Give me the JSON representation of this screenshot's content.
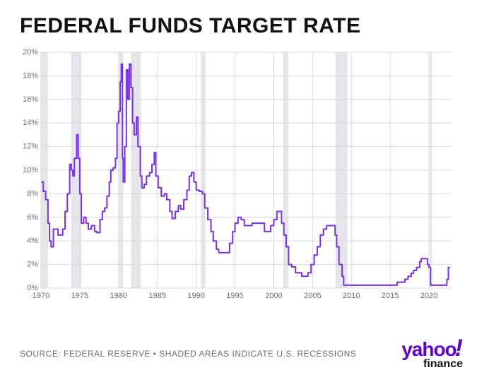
{
  "title": "FEDERAL FUNDS TARGET RATE",
  "source_line": "SOURCE: FEDERAL RESERVE • SHADED AREAS INDICATE U.S. RECESSIONS",
  "logo": {
    "main": "yahoo",
    "bang": "!",
    "sub": "finance"
  },
  "chart": {
    "type": "line-step",
    "background_color": "#ffffff",
    "plot_background": "#ffffff",
    "line_color": "#7a2ff0",
    "line_width": 2,
    "grid_color": "#d9dbe0",
    "axis_color": "#6b6f76",
    "tick_label_color": "#6b6f76",
    "tick_fontsize": 11,
    "recession_fill": "#e4e6ea",
    "xlim": [
      1970,
      2023
    ],
    "x_ticks": [
      1970,
      1975,
      1980,
      1985,
      1990,
      1995,
      2000,
      2005,
      2010,
      2015,
      2020
    ],
    "ylim": [
      0,
      20
    ],
    "y_ticks": [
      0,
      2,
      4,
      6,
      8,
      10,
      12,
      14,
      16,
      18,
      20
    ],
    "y_tick_suffix": "%",
    "recessions": [
      [
        1970.0,
        1970.9
      ],
      [
        1973.9,
        1975.2
      ],
      [
        1980.0,
        1980.6
      ],
      [
        1981.6,
        1982.9
      ],
      [
        1990.6,
        1991.2
      ],
      [
        2001.2,
        2001.9
      ],
      [
        2007.95,
        2009.5
      ],
      [
        2020.1,
        2020.4
      ]
    ],
    "series": [
      [
        1970.0,
        9.0
      ],
      [
        1970.3,
        8.2
      ],
      [
        1970.6,
        7.5
      ],
      [
        1970.9,
        5.5
      ],
      [
        1971.1,
        4.0
      ],
      [
        1971.3,
        3.5
      ],
      [
        1971.6,
        5.0
      ],
      [
        1971.9,
        5.0
      ],
      [
        1972.2,
        4.5
      ],
      [
        1972.5,
        4.5
      ],
      [
        1972.8,
        5.0
      ],
      [
        1973.1,
        6.5
      ],
      [
        1973.4,
        8.0
      ],
      [
        1973.7,
        10.5
      ],
      [
        1973.9,
        10.0
      ],
      [
        1974.1,
        9.5
      ],
      [
        1974.3,
        11.0
      ],
      [
        1974.6,
        13.0
      ],
      [
        1974.8,
        11.0
      ],
      [
        1975.0,
        8.0
      ],
      [
        1975.2,
        5.5
      ],
      [
        1975.5,
        6.0
      ],
      [
        1975.8,
        5.5
      ],
      [
        1976.1,
        5.0
      ],
      [
        1976.5,
        5.3
      ],
      [
        1976.9,
        4.8
      ],
      [
        1977.2,
        4.7
      ],
      [
        1977.6,
        5.8
      ],
      [
        1977.9,
        6.5
      ],
      [
        1978.2,
        6.8
      ],
      [
        1978.5,
        7.8
      ],
      [
        1978.8,
        9.0
      ],
      [
        1979.0,
        10.0
      ],
      [
        1979.3,
        10.2
      ],
      [
        1979.6,
        11.0
      ],
      [
        1979.8,
        14.0
      ],
      [
        1980.0,
        15.0
      ],
      [
        1980.2,
        17.5
      ],
      [
        1980.35,
        19.0
      ],
      [
        1980.5,
        11.0
      ],
      [
        1980.6,
        9.0
      ],
      [
        1980.8,
        12.0
      ],
      [
        1981.0,
        18.5
      ],
      [
        1981.2,
        16.0
      ],
      [
        1981.4,
        19.0
      ],
      [
        1981.6,
        17.0
      ],
      [
        1981.8,
        14.0
      ],
      [
        1982.0,
        13.0
      ],
      [
        1982.3,
        14.5
      ],
      [
        1982.5,
        12.0
      ],
      [
        1982.8,
        9.5
      ],
      [
        1983.0,
        8.5
      ],
      [
        1983.3,
        8.8
      ],
      [
        1983.6,
        9.5
      ],
      [
        1984.0,
        9.8
      ],
      [
        1984.3,
        10.5
      ],
      [
        1984.6,
        11.5
      ],
      [
        1984.8,
        9.5
      ],
      [
        1985.1,
        8.5
      ],
      [
        1985.5,
        7.8
      ],
      [
        1985.9,
        8.0
      ],
      [
        1986.2,
        7.5
      ],
      [
        1986.6,
        6.5
      ],
      [
        1986.9,
        5.9
      ],
      [
        1987.3,
        6.5
      ],
      [
        1987.7,
        7.0
      ],
      [
        1988.0,
        6.7
      ],
      [
        1988.4,
        7.5
      ],
      [
        1988.8,
        8.3
      ],
      [
        1989.1,
        9.5
      ],
      [
        1989.4,
        9.8
      ],
      [
        1989.7,
        9.0
      ],
      [
        1990.0,
        8.3
      ],
      [
        1990.4,
        8.2
      ],
      [
        1990.8,
        8.0
      ],
      [
        1991.1,
        6.8
      ],
      [
        1991.5,
        5.8
      ],
      [
        1991.9,
        4.8
      ],
      [
        1992.2,
        4.0
      ],
      [
        1992.6,
        3.3
      ],
      [
        1992.9,
        3.0
      ],
      [
        1993.5,
        3.0
      ],
      [
        1994.0,
        3.0
      ],
      [
        1994.3,
        3.8
      ],
      [
        1994.7,
        4.8
      ],
      [
        1995.0,
        5.5
      ],
      [
        1995.4,
        6.0
      ],
      [
        1995.8,
        5.8
      ],
      [
        1996.2,
        5.3
      ],
      [
        1996.8,
        5.3
      ],
      [
        1997.2,
        5.5
      ],
      [
        1997.8,
        5.5
      ],
      [
        1998.3,
        5.5
      ],
      [
        1998.8,
        4.8
      ],
      [
        1999.2,
        4.8
      ],
      [
        1999.6,
        5.3
      ],
      [
        2000.0,
        5.8
      ],
      [
        2000.4,
        6.5
      ],
      [
        2000.8,
        6.5
      ],
      [
        2001.0,
        5.5
      ],
      [
        2001.3,
        4.5
      ],
      [
        2001.6,
        3.5
      ],
      [
        2001.9,
        2.0
      ],
      [
        2002.3,
        1.8
      ],
      [
        2002.8,
        1.3
      ],
      [
        2003.2,
        1.3
      ],
      [
        2003.6,
        1.0
      ],
      [
        2004.0,
        1.0
      ],
      [
        2004.4,
        1.3
      ],
      [
        2004.8,
        2.0
      ],
      [
        2005.2,
        2.8
      ],
      [
        2005.6,
        3.5
      ],
      [
        2006.0,
        4.5
      ],
      [
        2006.4,
        5.0
      ],
      [
        2006.8,
        5.3
      ],
      [
        2007.2,
        5.3
      ],
      [
        2007.6,
        5.3
      ],
      [
        2007.9,
        4.5
      ],
      [
        2008.1,
        3.5
      ],
      [
        2008.4,
        2.0
      ],
      [
        2008.8,
        1.0
      ],
      [
        2009.0,
        0.25
      ],
      [
        2010.0,
        0.25
      ],
      [
        2011.0,
        0.25
      ],
      [
        2012.0,
        0.25
      ],
      [
        2013.0,
        0.25
      ],
      [
        2014.0,
        0.25
      ],
      [
        2015.0,
        0.25
      ],
      [
        2015.9,
        0.5
      ],
      [
        2016.5,
        0.5
      ],
      [
        2016.9,
        0.75
      ],
      [
        2017.3,
        1.0
      ],
      [
        2017.7,
        1.25
      ],
      [
        2018.0,
        1.5
      ],
      [
        2018.4,
        1.75
      ],
      [
        2018.8,
        2.25
      ],
      [
        2019.0,
        2.5
      ],
      [
        2019.5,
        2.5
      ],
      [
        2019.8,
        2.0
      ],
      [
        2020.0,
        1.75
      ],
      [
        2020.2,
        0.25
      ],
      [
        2020.8,
        0.25
      ],
      [
        2021.5,
        0.25
      ],
      [
        2022.0,
        0.25
      ],
      [
        2022.3,
        0.75
      ],
      [
        2022.5,
        1.75
      ],
      [
        2022.7,
        1.75
      ]
    ]
  }
}
